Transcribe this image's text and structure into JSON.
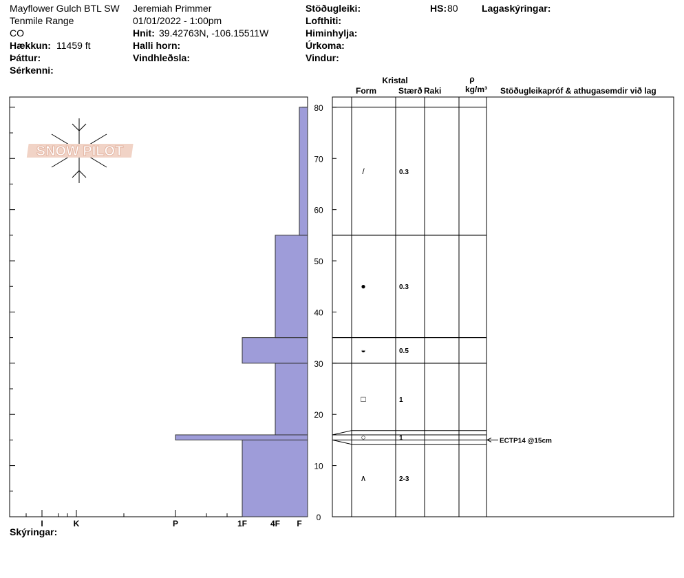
{
  "header": {
    "site": "Mayflower Gulch BTL SW",
    "range": "Tenmile Range",
    "state": "CO",
    "elevation": {
      "label": "Hækkun:",
      "value": "11459 ft"
    },
    "aspect": "Þáttur:",
    "features": "Sérkenni:",
    "observer": "Jeremiah Primmer",
    "datetime": "01/01/2022 - 1:00pm",
    "coords": {
      "label": "Hnit:",
      "value": "39.42763N, -106.15511W"
    },
    "slope": "Halli horn:",
    "wind_loading": "Vindhleðsla:",
    "stability": "Stöðugleiki:",
    "air_temp": "Lofthiti:",
    "sky": "Himinhylja:",
    "precip": "Úrkoma:",
    "wind": "Vindur:",
    "hs": {
      "label": "HS:",
      "value": 80
    },
    "layer_notes": "Lagaskýringar:"
  },
  "profile": {
    "logo": "SNOW PILOT",
    "ylim": [
      0,
      82
    ],
    "yticks": [
      0,
      10,
      20,
      30,
      40,
      50,
      60,
      70,
      80
    ],
    "hardness_scale": [
      "I",
      "K",
      "P",
      "1F",
      "4F",
      "F"
    ],
    "columns": {
      "crystal": "Kristal",
      "form": "Form",
      "size": "Stærð",
      "moisture": "Raki",
      "rho": "ρ",
      "density_unit": "kg/m³",
      "tests": "Stöðugleikapróf & athugasemdir við lag"
    },
    "layers": [
      {
        "bottom": 0,
        "top": 15,
        "hardness": "1F",
        "form": "∧",
        "size": "2-3"
      },
      {
        "bottom": 15,
        "top": 16,
        "hardness": "P",
        "form": "○",
        "size": "1"
      },
      {
        "bottom": 16,
        "top": 30,
        "hardness": "4F",
        "form": "□",
        "size": "1"
      },
      {
        "bottom": 30,
        "top": 35,
        "hardness": "1F",
        "form": "◒",
        "size": "0.5"
      },
      {
        "bottom": 35,
        "top": 55,
        "hardness": "4F",
        "form": "●",
        "size": "0.3"
      },
      {
        "bottom": 55,
        "top": 80,
        "hardness": "F",
        "form": "/",
        "size": "0.3"
      }
    ],
    "tests": [
      {
        "height": 15,
        "label": "ECTP14 @15cm"
      }
    ],
    "notes": "Skýringar:"
  }
}
